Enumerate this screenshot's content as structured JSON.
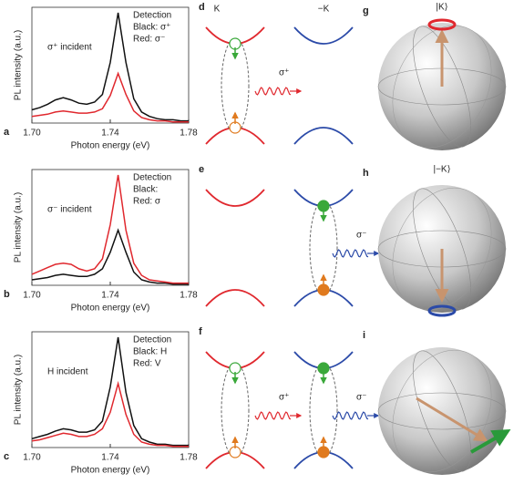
{
  "chart_data": [
    {
      "type": "line",
      "panel": "a",
      "annotation": "σ⁺ incident",
      "legend_title": "Detection",
      "xlabel": "Photon energy (eV)",
      "ylabel": "PL intensity (a.u.)",
      "x": [
        1.7,
        1.704,
        1.708,
        1.712,
        1.716,
        1.72,
        1.724,
        1.728,
        1.732,
        1.736,
        1.74,
        1.744,
        1.748,
        1.752,
        1.756,
        1.76,
        1.764,
        1.768,
        1.772,
        1.776,
        1.78
      ],
      "xlim": [
        1.7,
        1.78
      ],
      "xticks": [
        {
          "value": 1.7,
          "label": "1.70"
        },
        1.74,
        1.78
      ],
      "ylim": [
        0,
        1.05
      ],
      "series": [
        {
          "name": "Black: σ⁺",
          "color": "#111111",
          "values": [
            0.12,
            0.14,
            0.17,
            0.21,
            0.23,
            0.21,
            0.18,
            0.17,
            0.19,
            0.26,
            0.55,
            1.0,
            0.55,
            0.22,
            0.1,
            0.06,
            0.04,
            0.03,
            0.03,
            0.02,
            0.02
          ]
        },
        {
          "name": "Red: σ⁻",
          "color": "#e0282e",
          "values": [
            0.06,
            0.07,
            0.08,
            0.1,
            0.11,
            0.1,
            0.09,
            0.09,
            0.1,
            0.13,
            0.25,
            0.45,
            0.26,
            0.11,
            0.05,
            0.03,
            0.02,
            0.02,
            0.01,
            0.01,
            0.01
          ]
        }
      ]
    },
    {
      "type": "line",
      "panel": "b",
      "annotation": "σ⁻ incident",
      "legend_title": "Detection",
      "xlabel": "Photon energy (eV)",
      "ylabel": "PL intensity (a.u.)",
      "x": [
        1.7,
        1.704,
        1.708,
        1.712,
        1.716,
        1.72,
        1.724,
        1.728,
        1.732,
        1.736,
        1.74,
        1.744,
        1.748,
        1.752,
        1.756,
        1.76,
        1.764,
        1.768,
        1.772,
        1.776,
        1.78
      ],
      "xlim": [
        1.7,
        1.78
      ],
      "xticks": [
        {
          "value": 1.7,
          "label": "1.70"
        },
        1.74,
        1.78
      ],
      "ylim": [
        0,
        1.05
      ],
      "series": [
        {
          "name": "Black:",
          "color": "#111111",
          "values": [
            0.05,
            0.06,
            0.07,
            0.09,
            0.1,
            0.09,
            0.08,
            0.08,
            0.1,
            0.15,
            0.3,
            0.5,
            0.3,
            0.12,
            0.05,
            0.03,
            0.02,
            0.02,
            0.01,
            0.01,
            0.01
          ]
        },
        {
          "name": "Red: σ",
          "color": "#e0282e",
          "values": [
            0.1,
            0.13,
            0.16,
            0.19,
            0.2,
            0.19,
            0.15,
            0.13,
            0.15,
            0.24,
            0.55,
            1.0,
            0.5,
            0.2,
            0.09,
            0.05,
            0.04,
            0.03,
            0.02,
            0.02,
            0.02
          ]
        }
      ]
    },
    {
      "type": "line",
      "panel": "c",
      "annotation": "H incident",
      "legend_title": "Detection",
      "xlabel": "Photon energy (eV)",
      "ylabel": "PL intensity (a.u.)",
      "x": [
        1.7,
        1.704,
        1.708,
        1.712,
        1.716,
        1.72,
        1.724,
        1.728,
        1.732,
        1.736,
        1.74,
        1.744,
        1.748,
        1.752,
        1.756,
        1.76,
        1.764,
        1.768,
        1.772,
        1.776,
        1.78
      ],
      "xlim": [
        1.7,
        1.78
      ],
      "xticks": [
        {
          "value": 1.7,
          "label": "1.70"
        },
        1.74,
        1.78
      ],
      "ylim": [
        0,
        1.05
      ],
      "series": [
        {
          "name": "Black: H",
          "color": "#111111",
          "values": [
            0.08,
            0.1,
            0.12,
            0.15,
            0.17,
            0.16,
            0.14,
            0.14,
            0.16,
            0.24,
            0.55,
            1.0,
            0.5,
            0.2,
            0.08,
            0.05,
            0.03,
            0.03,
            0.02,
            0.02,
            0.02
          ]
        },
        {
          "name": "Red: V",
          "color": "#e0282e",
          "values": [
            0.06,
            0.07,
            0.09,
            0.11,
            0.13,
            0.12,
            0.1,
            0.1,
            0.12,
            0.17,
            0.32,
            0.58,
            0.3,
            0.12,
            0.05,
            0.03,
            0.02,
            0.02,
            0.01,
            0.01,
            0.01
          ]
        }
      ]
    }
  ],
  "diagrams": [
    {
      "panel": "d",
      "valleys": [
        "K",
        "−K"
      ],
      "photons": [
        "σ⁺"
      ]
    },
    {
      "panel": "e",
      "photons": [
        "σ⁻"
      ]
    },
    {
      "panel": "f",
      "photons": [
        "σ⁺",
        "σ⁻"
      ]
    }
  ],
  "spheres": [
    {
      "panel": "g",
      "state": "|K⟩"
    },
    {
      "panel": "h",
      "state": "|−K⟩"
    },
    {
      "panel": "i"
    }
  ]
}
